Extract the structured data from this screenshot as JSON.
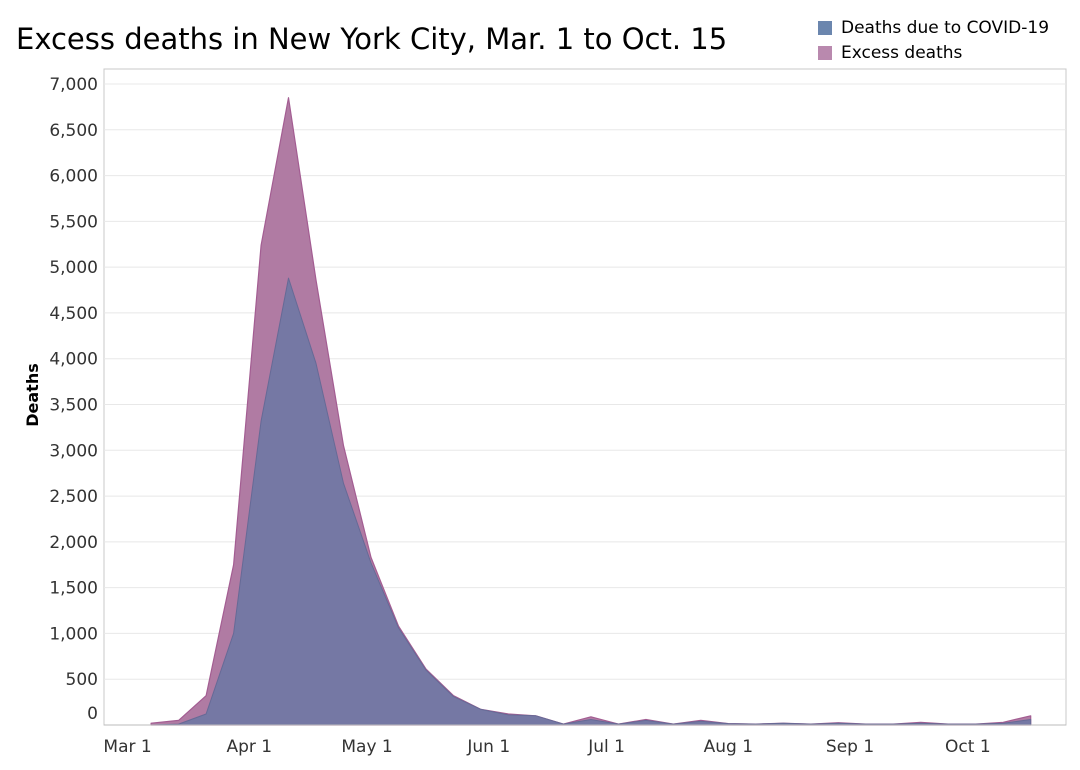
{
  "colors": {
    "covid": "#7578a4",
    "covid_legend": "#6b86ae",
    "excess": "#b07ba3",
    "excess_legend": "#b989ae",
    "excess_edge": "#a35d92",
    "grid": "#e8e8e8",
    "frame": "#c8c8c8"
  },
  "chart_data": {
    "type": "area",
    "title": "Excess deaths in New York City, Mar. 1 to Oct. 15",
    "ylabel": "Deaths",
    "xlabel": "",
    "ylim": [
      0,
      7000
    ],
    "y_ticks": [
      {
        "value": 0,
        "label": "0"
      },
      {
        "value": 500,
        "label": "500"
      },
      {
        "value": 1000,
        "label": "1,000"
      },
      {
        "value": 1500,
        "label": "1,500"
      },
      {
        "value": 2000,
        "label": "2,000"
      },
      {
        "value": 2500,
        "label": "2,500"
      },
      {
        "value": 3000,
        "label": "3,000"
      },
      {
        "value": 3500,
        "label": "3,500"
      },
      {
        "value": 4000,
        "label": "4,000"
      },
      {
        "value": 4500,
        "label": "4,500"
      },
      {
        "value": 5000,
        "label": "5,000"
      },
      {
        "value": 5500,
        "label": "5,500"
      },
      {
        "value": 6000,
        "label": "6,000"
      },
      {
        "value": 6500,
        "label": "6,500"
      },
      {
        "value": 7000,
        "label": "7,000"
      }
    ],
    "x_range": [
      "2020-02-24",
      "2020-10-26"
    ],
    "x_ticks": [
      {
        "date": "2020-03-01",
        "label": "Mar 1"
      },
      {
        "date": "2020-04-01",
        "label": "Apr 1"
      },
      {
        "date": "2020-05-01",
        "label": "May 1"
      },
      {
        "date": "2020-06-01",
        "label": "Jun 1"
      },
      {
        "date": "2020-07-01",
        "label": "Jul 1"
      },
      {
        "date": "2020-08-01",
        "label": "Aug 1"
      },
      {
        "date": "2020-09-01",
        "label": "Sep 1"
      },
      {
        "date": "2020-10-01",
        "label": "Oct 1"
      }
    ],
    "legend_position": "top-right",
    "grid": true,
    "x": [
      "2020-03-07",
      "2020-03-14",
      "2020-03-21",
      "2020-03-28",
      "2020-04-04",
      "2020-04-11",
      "2020-04-18",
      "2020-04-25",
      "2020-05-02",
      "2020-05-09",
      "2020-05-16",
      "2020-05-23",
      "2020-05-30",
      "2020-06-06",
      "2020-06-13",
      "2020-06-20",
      "2020-06-27",
      "2020-07-04",
      "2020-07-11",
      "2020-07-18",
      "2020-07-25",
      "2020-08-01",
      "2020-08-08",
      "2020-08-15",
      "2020-08-22",
      "2020-08-29",
      "2020-09-05",
      "2020-09-12",
      "2020-09-19",
      "2020-09-26",
      "2020-10-03",
      "2020-10-10",
      "2020-10-17"
    ],
    "series": [
      {
        "name": "Excess deaths",
        "color_key": "excess",
        "values": [
          20,
          50,
          320,
          1750,
          5240,
          6850,
          4860,
          3050,
          1830,
          1080,
          610,
          320,
          170,
          120,
          100,
          10,
          90,
          10,
          60,
          10,
          50,
          15,
          10,
          20,
          10,
          25,
          10,
          10,
          30,
          10,
          10,
          30,
          100
        ]
      },
      {
        "name": "Deaths due to COVID-19",
        "color_key": "covid",
        "values": [
          0,
          10,
          120,
          1000,
          3320,
          4880,
          3950,
          2640,
          1770,
          1060,
          600,
          310,
          170,
          110,
          100,
          10,
          60,
          10,
          50,
          10,
          40,
          15,
          10,
          20,
          10,
          20,
          10,
          10,
          20,
          10,
          10,
          20,
          60
        ]
      }
    ]
  }
}
